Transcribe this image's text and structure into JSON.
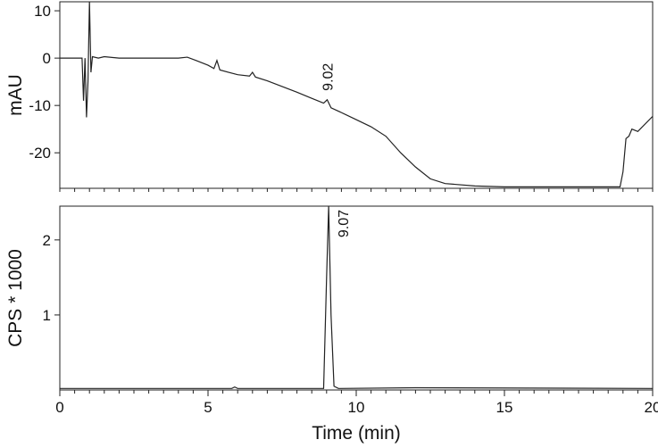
{
  "chart_data": [
    {
      "type": "line",
      "y_label": "mAU",
      "x": [
        0,
        0.75,
        0.8,
        0.85,
        0.9,
        0.95,
        1.0,
        1.05,
        1.1,
        1.3,
        1.5,
        2,
        3,
        4,
        4.3,
        4.6,
        5,
        5.2,
        5.3,
        5.4,
        6,
        6.4,
        6.5,
        6.6,
        7,
        7.5,
        8,
        8.5,
        8.9,
        9.02,
        9.15,
        9.5,
        10,
        10.5,
        11,
        11.5,
        12,
        12.5,
        13,
        14,
        15,
        16,
        17,
        18,
        18.9,
        19.0,
        19.1,
        19.2,
        19.3,
        19.5,
        20
      ],
      "series": [
        {
          "color": "#222222",
          "values": [
            0,
            0,
            -9,
            0,
            -12.5,
            -5,
            12,
            -3,
            0.3,
            0,
            0.3,
            0,
            0,
            0,
            0.2,
            -0.5,
            -1.5,
            -2.2,
            -0.5,
            -2.5,
            -3.5,
            -3.8,
            -3,
            -4,
            -4.8,
            -6,
            -7.2,
            -8.5,
            -9.5,
            -8.8,
            -10.5,
            -11.5,
            -13,
            -14.5,
            -16.5,
            -20,
            -23,
            -25.5,
            -26.5,
            -27,
            -27.2,
            -27.2,
            -27.2,
            -27.2,
            -27.2,
            -24,
            -17,
            -16.5,
            -15,
            -15.5,
            -12.3
          ]
        }
      ],
      "xlim": [
        0,
        20
      ],
      "ylim": [
        -27.5,
        11.9
      ],
      "yticks": [
        10,
        0,
        -10,
        -20
      ],
      "xminorticks": [
        0,
        0.5,
        1,
        1.5,
        2,
        2.5,
        3,
        3.5,
        4,
        4.5,
        5,
        5.5,
        6,
        6.5,
        7,
        7.5,
        8,
        8.5,
        9,
        9.5,
        10,
        10.5,
        11,
        11.5,
        12,
        12.5,
        13,
        13.5,
        14,
        14.5,
        15,
        15.5,
        16,
        16.5,
        17,
        17.5,
        18,
        18.5,
        19,
        19.5,
        20
      ],
      "annotations": [
        {
          "text": "9.02",
          "x": 9.02,
          "y": -8.8
        }
      ]
    },
    {
      "type": "line",
      "y_label": "CPS * 1000",
      "x_label": "Time (min)",
      "x": [
        0,
        5.8,
        5.9,
        6.0,
        8.9,
        9.0,
        9.07,
        9.15,
        9.25,
        9.4,
        12,
        20
      ],
      "series": [
        {
          "color": "#222222",
          "values": [
            0.02,
            0.02,
            0.04,
            0.02,
            0.02,
            1.5,
            2.45,
            1.0,
            0.05,
            0.02,
            0.03,
            0.02
          ]
        }
      ],
      "xlim": [
        0,
        20
      ],
      "ylim": [
        0,
        2.45
      ],
      "yticks": [
        1,
        2
      ],
      "xticks": [
        0,
        5,
        10,
        15,
        20
      ],
      "xminorticks": [
        0,
        0.5,
        1,
        1.5,
        2,
        2.5,
        3,
        3.5,
        4,
        4.5,
        5,
        5.5,
        6,
        6.5,
        7,
        7.5,
        8,
        8.5,
        9,
        9.5,
        10,
        10.5,
        11,
        11.5,
        12,
        12.5,
        13,
        13.5,
        14,
        14.5,
        15,
        15.5,
        16,
        16.5,
        17,
        17.5,
        18,
        18.5,
        19,
        19.5,
        20
      ],
      "annotations": [
        {
          "text": "9.07",
          "x": 9.07,
          "y": 2.45
        }
      ]
    }
  ]
}
